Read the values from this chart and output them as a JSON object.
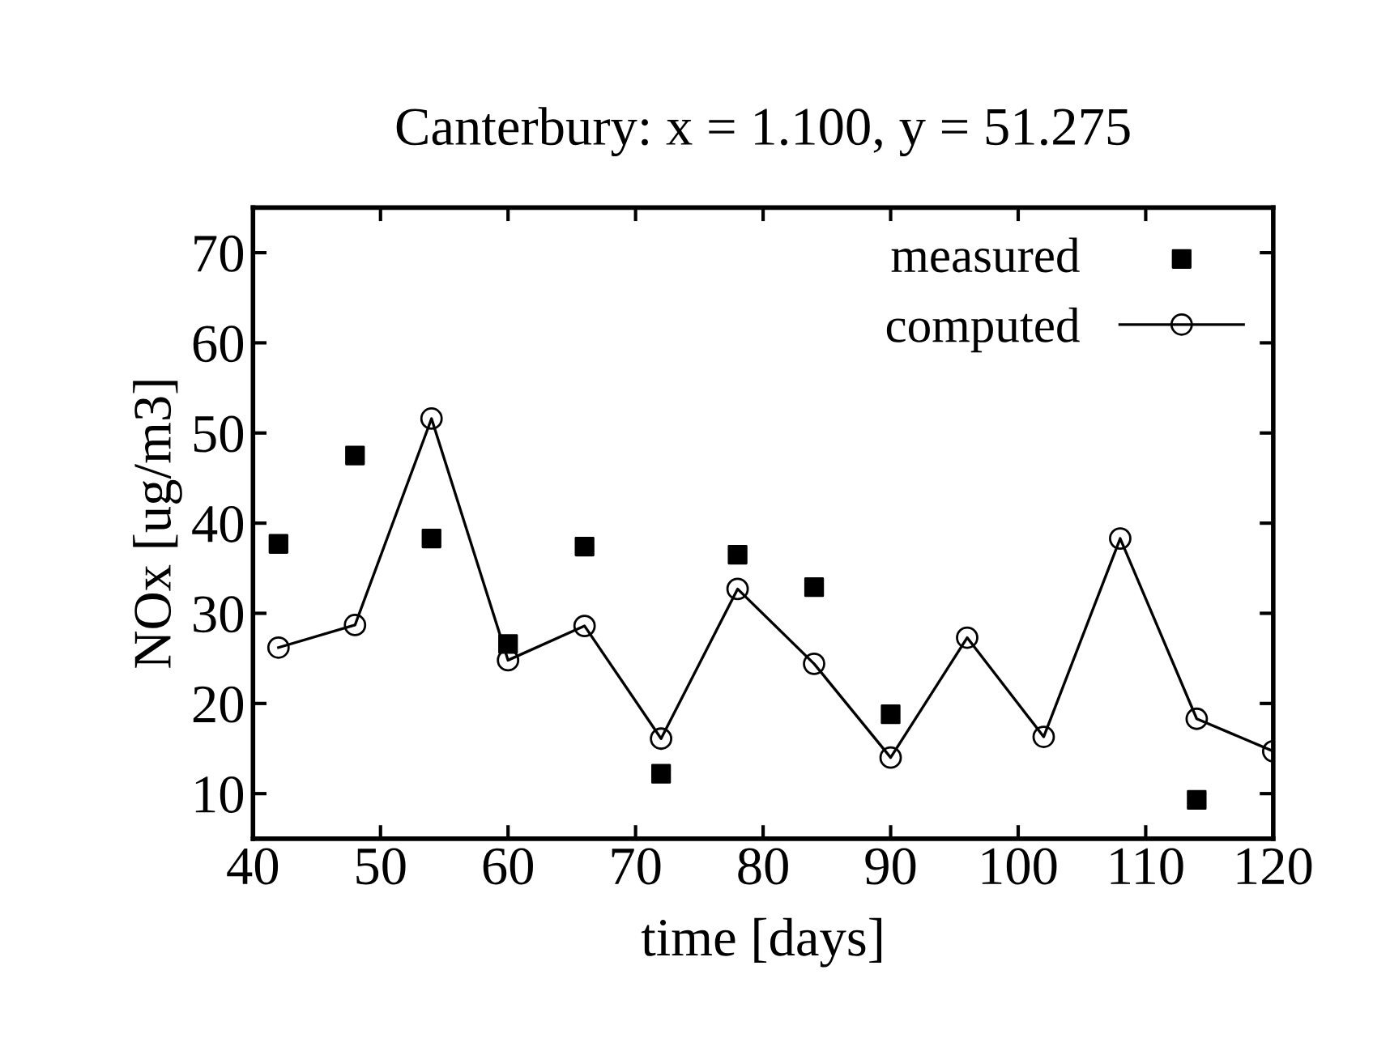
{
  "chart_data": {
    "type": "line",
    "title": "Canterbury: x = 1.100, y = 51.275",
    "xlabel": "time [days]",
    "ylabel": "NOx [ug/m3]",
    "xlim": [
      40,
      120
    ],
    "xticks": [
      40,
      50,
      60,
      70,
      80,
      90,
      100,
      110,
      120
    ],
    "ylim": [
      5,
      75
    ],
    "yticks": [
      10,
      20,
      30,
      40,
      50,
      60,
      70
    ],
    "grid": false,
    "legend": "top right",
    "series": [
      {
        "name": "measured",
        "type": "scatter",
        "marker": "square",
        "color": "#000000",
        "x": [
          42,
          48,
          54,
          60,
          66,
          72,
          78,
          84,
          90,
          114
        ],
        "values": [
          37.7,
          47.5,
          38.3,
          26.6,
          37.4,
          12.2,
          36.5,
          32.9,
          18.8,
          9.3
        ]
      },
      {
        "name": "computed",
        "marker": "circle",
        "line_style": "solid",
        "color": "#000000",
        "x": [
          42,
          48,
          54,
          60,
          66,
          72,
          78,
          84,
          90,
          96,
          102,
          108,
          114,
          120
        ],
        "values": [
          26.2,
          28.7,
          51.6,
          24.8,
          28.6,
          16.1,
          32.7,
          24.4,
          14.0,
          27.3,
          16.3,
          38.3,
          18.3,
          14.7
        ]
      }
    ]
  }
}
